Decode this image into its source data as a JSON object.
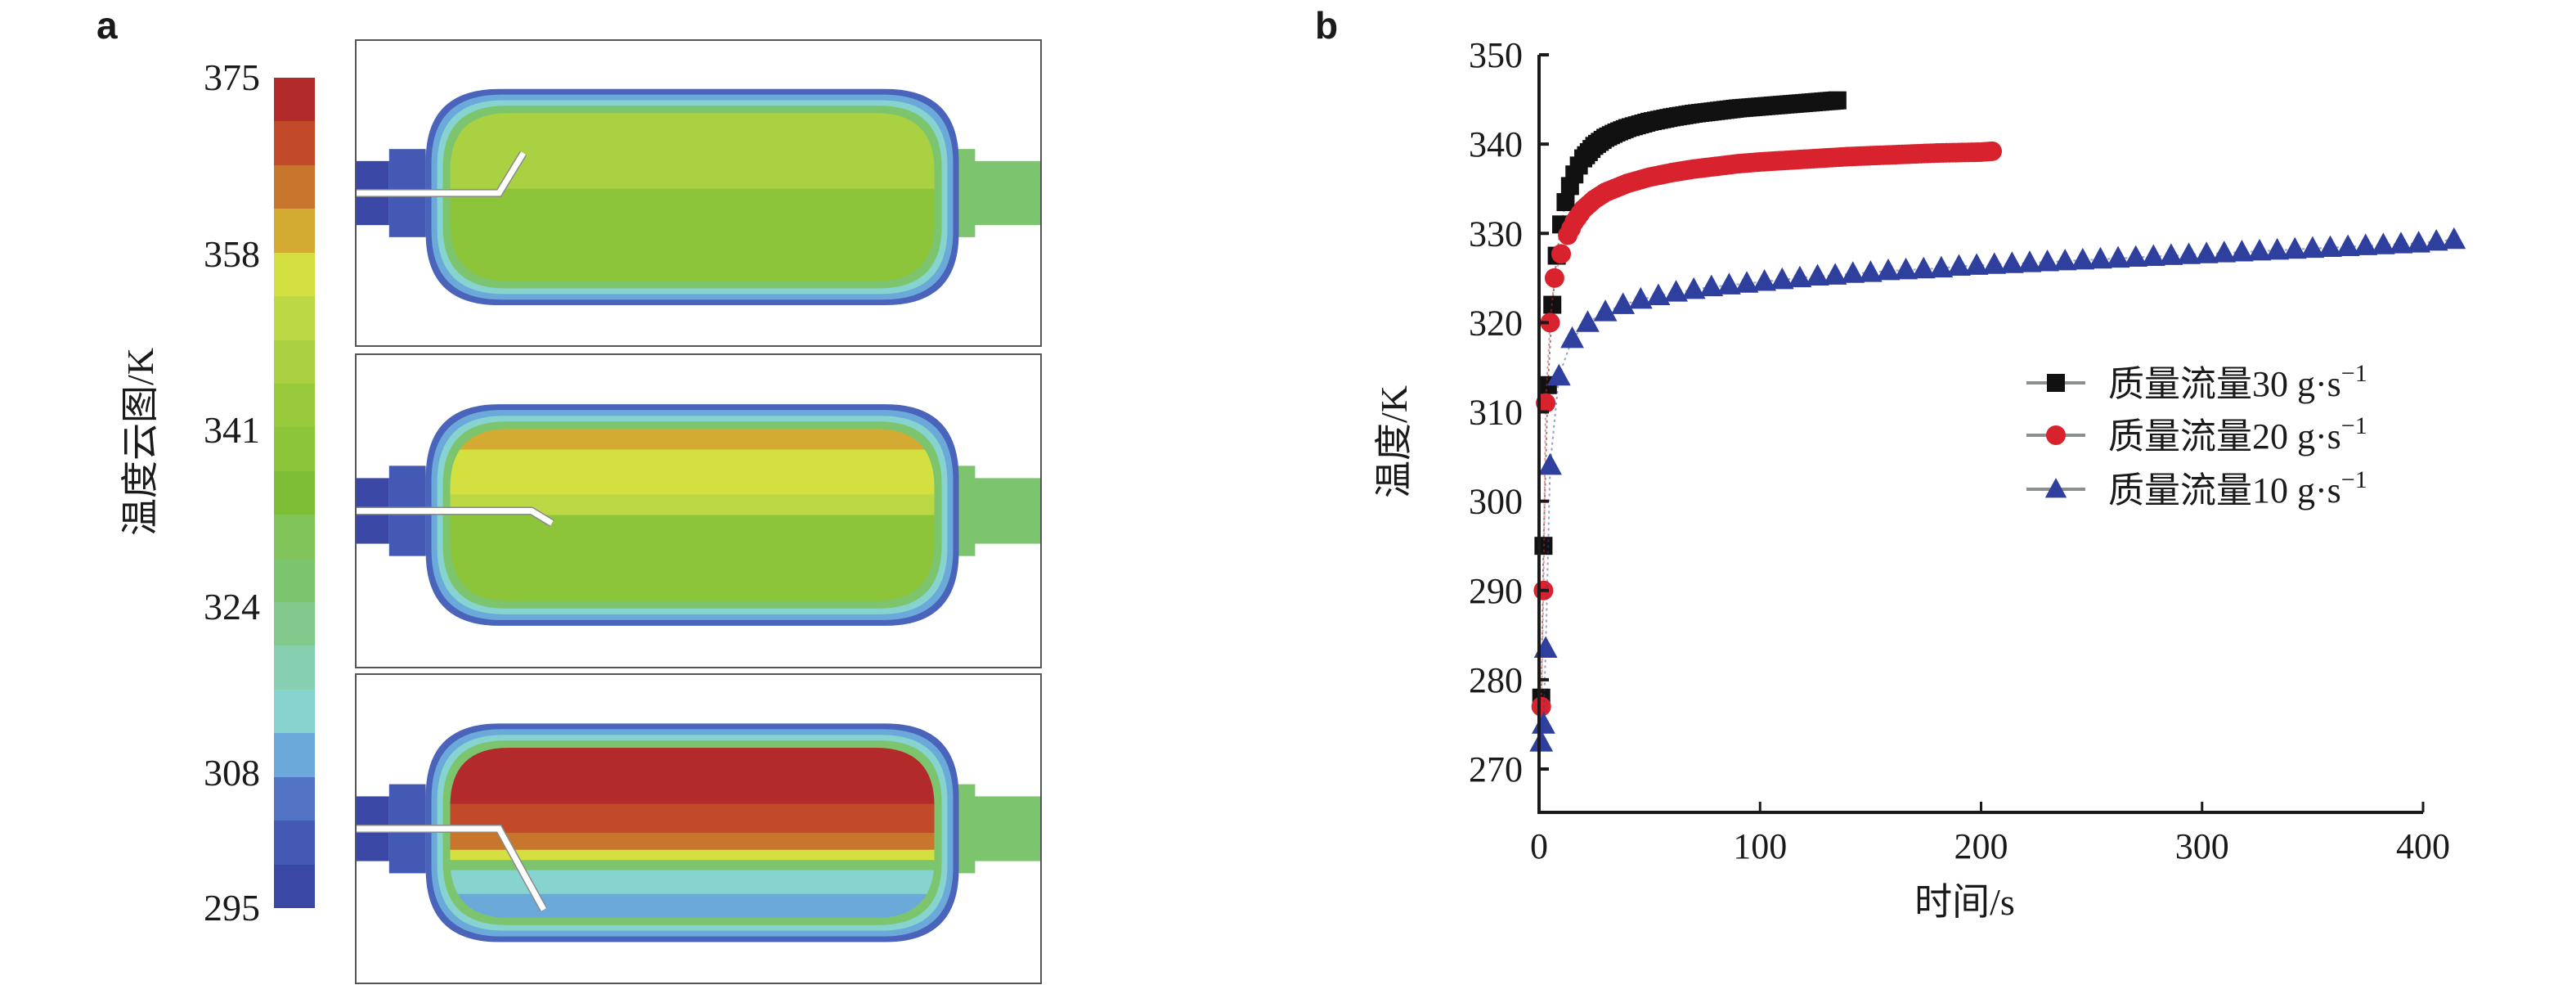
{
  "panel_a": {
    "label": "a",
    "colorbar": {
      "title": "温度云图/K",
      "tick_labels": [
        "375",
        "358",
        "341",
        "324",
        "308",
        "295"
      ],
      "tick_values": [
        375,
        358,
        341,
        324,
        308,
        295
      ],
      "range": [
        295,
        375
      ],
      "bands_top_to_bottom": [
        "#b22a2a",
        "#c24a2a",
        "#c8762e",
        "#d3aa32",
        "#d4e040",
        "#bcd945",
        "#a9d142",
        "#99ca3c",
        "#8cc43a",
        "#7dbe36",
        "#80c45a",
        "#7cc56e",
        "#83c98e",
        "#86cfb0",
        "#86d3cf",
        "#6aa9d9",
        "#5273c4",
        "#4459b3",
        "#3a47a4"
      ]
    },
    "contour_frames": [
      {
        "id": "frame-1",
        "description": "tank temperature contour, uniform green interior",
        "dominant_color": "#a6d143"
      },
      {
        "id": "frame-2",
        "description": "tank temperature contour, yellow/orange upper layer",
        "dominant_color": "#d4e040"
      },
      {
        "id": "frame-3",
        "description": "tank temperature contour, red stratified upper layer",
        "dominant_color": "#b22a2a"
      }
    ]
  },
  "panel_b": {
    "label": "b"
  },
  "chart_data": {
    "type": "scatter",
    "title": "",
    "xlabel": "时间/s",
    "ylabel": "温度/K",
    "xlim": [
      0,
      400
    ],
    "ylim": [
      265,
      350
    ],
    "xticks": [
      0,
      100,
      200,
      300,
      400
    ],
    "yticks": [
      270,
      280,
      290,
      300,
      310,
      320,
      330,
      340,
      350
    ],
    "xtick_labels": [
      "0",
      "100",
      "200",
      "300",
      "400"
    ],
    "ytick_labels": [
      "270",
      "280",
      "290",
      "300",
      "310",
      "320",
      "330",
      "340",
      "350"
    ],
    "grid": false,
    "legend_position": "center-right",
    "series": [
      {
        "name": "质量流量30 g·s⁻¹",
        "label_main": "质量流量30 g·s",
        "label_sup": "−1",
        "color": "#111111",
        "marker": "square",
        "x": [
          1,
          2,
          4,
          6,
          8,
          10,
          12,
          14,
          16,
          18,
          20,
          25,
          30,
          35,
          40,
          50,
          60,
          70,
          80,
          90,
          100,
          110,
          120,
          130,
          135
        ],
        "y": [
          278,
          295,
          313,
          322,
          327.5,
          331,
          333.5,
          335.3,
          336.6,
          337.6,
          338.4,
          339.8,
          340.7,
          341.3,
          341.8,
          342.5,
          343,
          343.4,
          343.7,
          344,
          344.2,
          344.4,
          344.6,
          344.8,
          344.9
        ]
      },
      {
        "name": "质量流量20 g·s⁻¹",
        "label_main": "质量流量20 g·s",
        "label_sup": "−1",
        "color": "#d8232f",
        "marker": "circle",
        "x": [
          1,
          2,
          3,
          5,
          7,
          10,
          13,
          16,
          20,
          25,
          30,
          40,
          50,
          60,
          70,
          80,
          90,
          100,
          120,
          140,
          160,
          180,
          200,
          205
        ],
        "y": [
          277,
          290,
          311,
          320,
          325,
          327.7,
          329.8,
          331.3,
          332.7,
          333.8,
          334.6,
          335.6,
          336.3,
          336.8,
          337.2,
          337.5,
          337.8,
          338,
          338.3,
          338.6,
          338.8,
          339,
          339.1,
          339.2
        ]
      },
      {
        "name": "质量流量10 g·s⁻¹",
        "label_main": "质量流量10 g·s",
        "label_sup": "−1",
        "color": "#2e3f9e",
        "marker": "triangle",
        "x": [
          1,
          2,
          3,
          5,
          9,
          15,
          22,
          30,
          38,
          46,
          54,
          62,
          70,
          78,
          86,
          94,
          102,
          110,
          118,
          126,
          134,
          142,
          150,
          158,
          166,
          174,
          182,
          190,
          198,
          206,
          214,
          222,
          230,
          238,
          246,
          254,
          262,
          270,
          278,
          286,
          294,
          302,
          310,
          318,
          326,
          334,
          342,
          350,
          358,
          366,
          374,
          382,
          390,
          398,
          406,
          414
        ],
        "y": [
          273,
          275,
          283.5,
          304,
          314,
          318.2,
          320,
          321.2,
          322,
          322.6,
          323,
          323.4,
          323.7,
          324,
          324.2,
          324.4,
          324.6,
          324.8,
          325,
          325.2,
          325.3,
          325.5,
          325.6,
          325.8,
          325.9,
          326,
          326.1,
          326.3,
          326.4,
          326.5,
          326.6,
          326.7,
          326.8,
          326.9,
          327,
          327.1,
          327.2,
          327.3,
          327.4,
          327.5,
          327.6,
          327.7,
          327.8,
          327.9,
          328,
          328.1,
          328.2,
          328.3,
          328.4,
          328.5,
          328.6,
          328.7,
          328.8,
          328.9,
          329.1,
          329.3
        ]
      }
    ]
  }
}
